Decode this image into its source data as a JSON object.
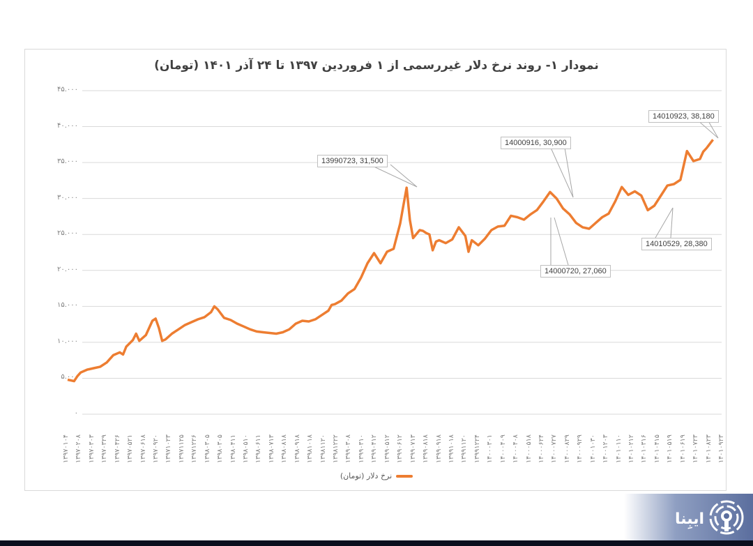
{
  "chart_data": {
    "type": "line",
    "title": "نمودار ۱- روند نرخ دلار غیررسمی از ۱ فروردین ۱۳۹۷ تا ۲۴ آذر ۱۴۰۱ (تومان)",
    "xlabel": "",
    "ylabel": "",
    "ylim": [
      0,
      45000
    ],
    "grid": true,
    "legend_position": "bottom",
    "y_ticks": [
      "۰",
      "۵.۰۰۰",
      "۱۰.۰۰۰",
      "۱۵.۰۰۰",
      "۲۰.۰۰۰",
      "۲۵.۰۰۰",
      "۳۰.۰۰۰",
      "۳۵.۰۰۰",
      "۴۰.۰۰۰",
      "۴۵.۰۰۰"
    ],
    "x_tick_labels": [
      "۱۳۹۷۰۱۰۴",
      "۱۳۹۷۰۲۰۸",
      "۱۳۹۷۰۳۰۳",
      "۱۳۹۷۰۳۲۹",
      "۱۳۹۷۰۴۲۶",
      "۱۳۹۷۰۵۲۱",
      "۱۳۹۷۰۶۱۸",
      "۱۳۹۷۰۹۲۰",
      "۱۳۹۷۱۰۲۳",
      "۱۳۹۷۱۱۲۵",
      "۱۳۹۷۱۲۲۶",
      "۱۳۹۸۰۳۰۵",
      "۱۳۹۸۰۳۰۵",
      "۱۳۹۸۰۴۱۱",
      "۱۳۹۸۰۵۱۰",
      "۱۳۹۸۰۶۱۱",
      "۱۳۹۸۰۷۱۳",
      "۱۳۹۸۰۸۱۸",
      "۱۳۹۸۰۹۱۸",
      "۱۳۹۸۱۰۱۸",
      "۱۳۹۸۱۱۲۰",
      "۱۳۹۸۱۲۲۲",
      "۱۳۹۹۰۳۰۸",
      "۱۳۹۹۰۳۱۰",
      "۱۳۹۹۰۴۱۲",
      "۱۳۹۹۰۵۱۲",
      "۱۳۹۹۰۶۱۲",
      "۱۳۹۹۰۷۱۳",
      "۱۳۹۹۰۸۱۸",
      "۱۳۹۹۰۹۱۸",
      "۱۳۹۹۱۰۱۸",
      "۱۳۹۹۱۱۲۰",
      "۱۳۹۹۱۲۲۴",
      "۱۴۰۰۰۳۰۱",
      "۱۴۰۰۰۴۰۹",
      "۱۴۰۰۰۴۰۸",
      "۱۴۰۰۰۵۱۸",
      "۱۴۰۰۰۶۲۴",
      "۱۴۰۰۰۷۲۷",
      "۱۴۰۰۰۸۲۹",
      "۱۴۰۰۰۹۲۹",
      "۱۴۰۰۱۰۳۰",
      "۱۴۰۰۱۲۰۳",
      "۱۴۰۱۰۱۱۰",
      "۱۴۰۱۰۲۱۲",
      "۱۴۰۱۰۳۱۶",
      "۱۴۰۱۰۴۱۵",
      "۱۴۰۱۰۵۱۹",
      "۱۴۰۱۰۶۱۹",
      "۱۴۰۱۰۷۲۳",
      "۱۴۰۱۰۸۲۳",
      "۱۴۰۱۰۹۲۳"
    ],
    "series": [
      {
        "name": "نرخ دلار (تومان)",
        "color": "#ed7d31",
        "x_positions": [
          0,
          0.01,
          0.015,
          0.02,
          0.03,
          0.04,
          0.05,
          0.06,
          0.07,
          0.08,
          0.085,
          0.09,
          0.1,
          0.105,
          0.11,
          0.115,
          0.12,
          0.13,
          0.135,
          0.14,
          0.145,
          0.15,
          0.16,
          0.17,
          0.18,
          0.19,
          0.2,
          0.21,
          0.22,
          0.225,
          0.23,
          0.24,
          0.25,
          0.26,
          0.27,
          0.28,
          0.29,
          0.3,
          0.31,
          0.32,
          0.33,
          0.34,
          0.35,
          0.36,
          0.37,
          0.38,
          0.39,
          0.4,
          0.405,
          0.41,
          0.42,
          0.43,
          0.44,
          0.45,
          0.46,
          0.47,
          0.48,
          0.49,
          0.5,
          0.51,
          0.515,
          0.52,
          0.525,
          0.53,
          0.54,
          0.545,
          0.55,
          0.555,
          0.56,
          0.565,
          0.57,
          0.58,
          0.59,
          0.6,
          0.61,
          0.615,
          0.62,
          0.63,
          0.64,
          0.645,
          0.65,
          0.66,
          0.67,
          0.68,
          0.69,
          0.7,
          0.71,
          0.72,
          0.73,
          0.74,
          0.75,
          0.76,
          0.77,
          0.78,
          0.79,
          0.8,
          0.81,
          0.82,
          0.83,
          0.84,
          0.85,
          0.86,
          0.87,
          0.88,
          0.89,
          0.9,
          0.91,
          0.92,
          0.93,
          0.94,
          0.95,
          0.96,
          0.97,
          0.975,
          0.98,
          0.99,
          1.0
        ],
        "values": [
          4800,
          4600,
          5300,
          5800,
          6200,
          6400,
          6600,
          7200,
          8200,
          8600,
          8300,
          9400,
          10300,
          11200,
          10200,
          10600,
          11000,
          13000,
          13300,
          12000,
          10200,
          10400,
          11200,
          11800,
          12400,
          12800,
          13200,
          13500,
          14200,
          15000,
          14600,
          13400,
          13100,
          12600,
          12200,
          11800,
          11500,
          11400,
          11300,
          11200,
          11400,
          11800,
          12600,
          13000,
          12900,
          13200,
          13800,
          14400,
          15200,
          15300,
          15800,
          16800,
          17400,
          19000,
          21000,
          22400,
          21000,
          22600,
          23000,
          26500,
          29000,
          31500,
          27000,
          24500,
          25600,
          25500,
          25200,
          25000,
          22800,
          24000,
          24200,
          23800,
          24300,
          26000,
          24800,
          22600,
          24200,
          23500,
          24400,
          25000,
          25600,
          26100,
          26200,
          27600,
          27400,
          27060,
          27800,
          28400,
          29600,
          30900,
          30000,
          28600,
          27800,
          26600,
          26000,
          25800,
          26600,
          27400,
          27900,
          29600,
          31600,
          30500,
          31000,
          30400,
          28380,
          29000,
          30400,
          31800,
          32000,
          32600,
          36600,
          35200,
          35500,
          36500,
          37000,
          38180
        ]
      }
    ],
    "annotations": [
      {
        "label": "13990723, 31,500",
        "date": "13990723",
        "value": 31500
      },
      {
        "label": "14000916, 30,900",
        "date": "14000916",
        "value": 30900
      },
      {
        "label": "14010923, 38,180",
        "date": "14010923",
        "value": 38180
      },
      {
        "label": "14010529, 28,380",
        "date": "14010529",
        "value": 28380
      },
      {
        "label": "14000720, 27,060",
        "date": "14000720",
        "value": 27060
      }
    ]
  },
  "legend": {
    "label": "نرخ دلار (تومان)"
  },
  "brand": {
    "name": "ایبِنا"
  }
}
